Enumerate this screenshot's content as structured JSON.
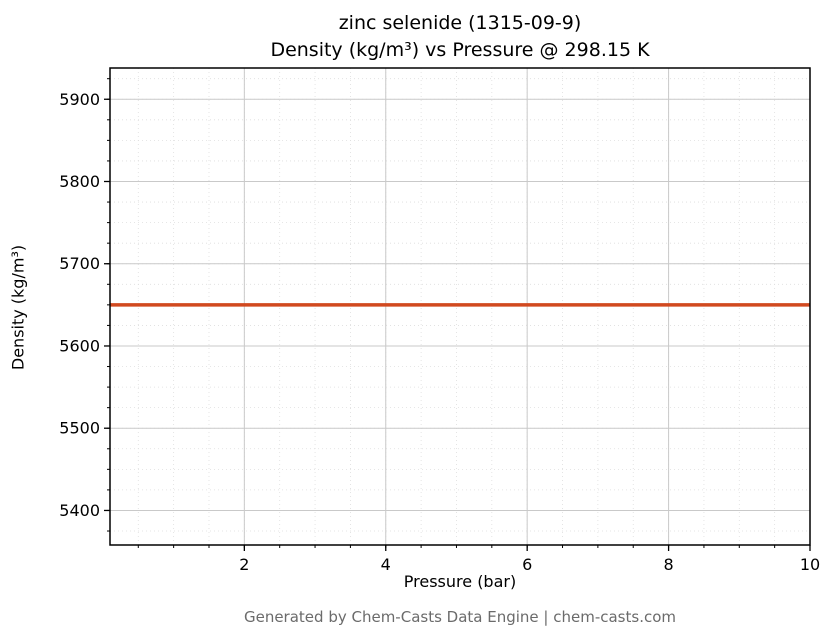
{
  "chart_data": {
    "type": "line",
    "title_line1": "zinc selenide (1315-09-9)",
    "title_line2": "Density (kg/m³) vs Pressure @ 298.15 K",
    "title": "zinc selenide (1315-09-9) Density (kg/m³) vs Pressure @ 298.15 K",
    "xlabel": "Pressure (bar)",
    "ylabel": "Density (kg/m³)",
    "xlim": [
      0.1,
      10
    ],
    "ylim": [
      5358,
      5938
    ],
    "xticks": [
      2,
      4,
      6,
      8,
      10
    ],
    "yticks": [
      5400,
      5500,
      5600,
      5700,
      5800,
      5900
    ],
    "x_minor_step": 0.5,
    "y_minor_step": 25,
    "grid": true,
    "legend": false,
    "series": [
      {
        "name": "density",
        "x": [
          0.1,
          10
        ],
        "y": [
          5650,
          5650
        ],
        "constant_value": 5650,
        "color": "#d1491f",
        "line_width": 3.5
      }
    ]
  },
  "colors": {
    "major_grid": "#c9c9c9",
    "minor_grid": "#dedede",
    "axis": "#000000",
    "footer_text": "#6b6b6b"
  },
  "footer": {
    "text": "Generated by Chem-Casts Data Engine | chem-casts.com"
  }
}
